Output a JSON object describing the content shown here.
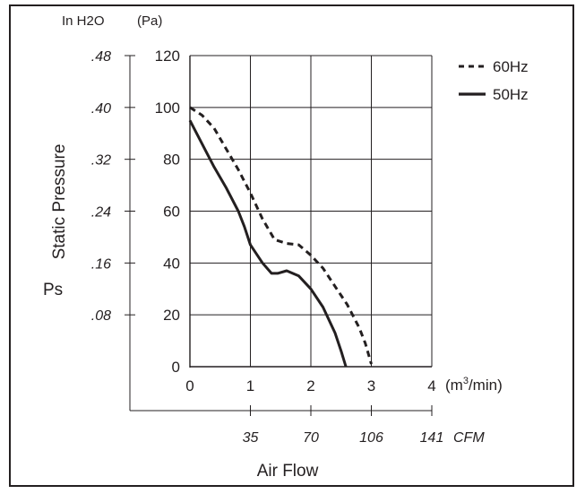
{
  "chart_data": {
    "type": "line",
    "colors": {
      "ink": "#231f20",
      "background": "#ffffff"
    },
    "grid": true,
    "legend_position": "top-right",
    "x": {
      "label": "Air Flow",
      "unit": "m3/min",
      "ticks": [
        0,
        1,
        2,
        3,
        4
      ],
      "range": [
        0,
        4
      ],
      "tick_labels": [
        "0",
        "1",
        "2",
        "3",
        "4"
      ],
      "unit_label": {
        "open": "(m",
        "sup": "3",
        "close": "/min)"
      }
    },
    "x_secondary": {
      "unit_label": "CFM",
      "tick_labels": [
        "35",
        "70",
        "106",
        "141"
      ],
      "positions_m3min": [
        1,
        2,
        3,
        4
      ]
    },
    "y": {
      "label": "Static Pressure",
      "symbol": "Ps",
      "unit_label": "(Pa)",
      "ticks": [
        0,
        20,
        40,
        60,
        80,
        100,
        120
      ],
      "range": [
        0,
        120
      ],
      "tick_labels": [
        "0",
        "20",
        "40",
        "60",
        "80",
        "100",
        "120"
      ]
    },
    "y_secondary": {
      "unit_label": "In H2O",
      "tick_labels": [
        ".08",
        ".16",
        ".24",
        ".32",
        ".40",
        ".48"
      ],
      "positions_pa": [
        20,
        40,
        60,
        80,
        100,
        120
      ]
    },
    "series": [
      {
        "name": "60Hz",
        "style": "dashed",
        "points": [
          [
            0,
            100
          ],
          [
            0.2,
            97
          ],
          [
            0.4,
            92
          ],
          [
            0.6,
            84
          ],
          [
            0.8,
            76
          ],
          [
            1.0,
            67
          ],
          [
            1.2,
            57
          ],
          [
            1.4,
            49
          ],
          [
            1.6,
            47.5
          ],
          [
            1.8,
            47
          ],
          [
            2.0,
            43
          ],
          [
            2.2,
            38
          ],
          [
            2.4,
            31
          ],
          [
            2.6,
            24
          ],
          [
            2.8,
            15
          ],
          [
            2.9,
            9
          ],
          [
            3.0,
            1
          ]
        ]
      },
      {
        "name": "50Hz",
        "style": "solid",
        "points": [
          [
            0,
            95
          ],
          [
            0.2,
            86
          ],
          [
            0.4,
            77
          ],
          [
            0.6,
            69
          ],
          [
            0.8,
            60
          ],
          [
            0.9,
            54
          ],
          [
            1.0,
            47
          ],
          [
            1.2,
            40
          ],
          [
            1.35,
            36
          ],
          [
            1.45,
            36
          ],
          [
            1.6,
            37
          ],
          [
            1.8,
            35
          ],
          [
            2.0,
            30
          ],
          [
            2.2,
            23
          ],
          [
            2.4,
            13
          ],
          [
            2.5,
            6
          ],
          [
            2.58,
            0
          ]
        ]
      }
    ]
  }
}
